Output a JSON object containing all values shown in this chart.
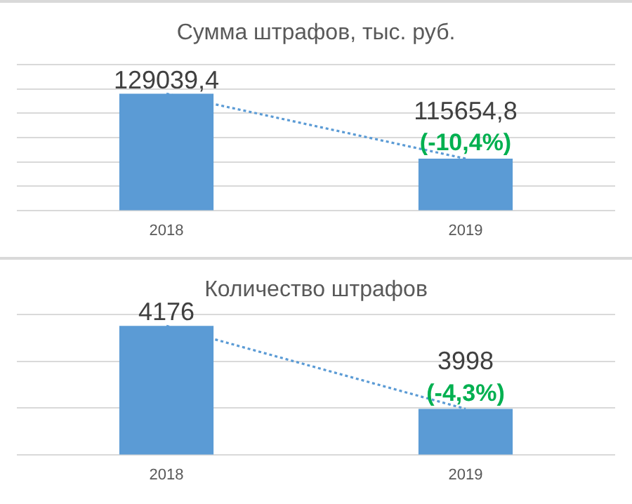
{
  "chart_data": [
    {
      "type": "bar",
      "title": "Сумма штрафов, тыс. руб.",
      "categories": [
        "2018",
        "2019"
      ],
      "series": [
        {
          "color": "#5b9bd5",
          "values": [
            129039.4,
            115654.8
          ],
          "value_labels": [
            "129039,4",
            "115654,8"
          ]
        },
        {
          "type": "line",
          "color": "#5b9bd5",
          "values": [
            129039.4,
            115654.8
          ],
          "line_style": "dotted",
          "marker": "none"
        }
      ],
      "ylim": [
        105000,
        135000
      ],
      "yticks": [
        {
          "value": 105000,
          "label": null
        },
        {
          "value": 110000,
          "label": null
        },
        {
          "value": 115000,
          "label": null
        },
        {
          "value": 120000,
          "label": null
        },
        {
          "value": 125000,
          "label": null
        },
        {
          "value": 130000,
          "label": null
        },
        {
          "value": 135000,
          "label": null
        }
      ],
      "tick_labels": "x",
      "grid": "y",
      "legend": false,
      "annotations": [
        {
          "text": "(-10,4%)",
          "x": "2019",
          "y": 115654.8
        }
      ]
    },
    {
      "type": "bar",
      "title": "Количество штрафов",
      "categories": [
        "2018",
        "2019"
      ],
      "series": [
        {
          "color": "#5b9bd5",
          "values": [
            4176,
            3998
          ],
          "value_labels": [
            "4176",
            "3998"
          ]
        },
        {
          "type": "line",
          "color": "#5b9bd5",
          "values": [
            4176,
            3998
          ],
          "line_style": "dotted",
          "marker": "none"
        }
      ],
      "ylim": [
        3900,
        4200
      ],
      "yticks": [
        {
          "value": 3900,
          "label": null
        },
        {
          "value": 4000,
          "label": null
        },
        {
          "value": 4100,
          "label": null
        },
        {
          "value": 4200,
          "label": null
        }
      ],
      "tick_labels": "x",
      "grid": "y",
      "legend": false,
      "annotations": [
        {
          "text": "(-4,3%)",
          "x": "2019",
          "y": 3998
        }
      ]
    }
  ]
}
